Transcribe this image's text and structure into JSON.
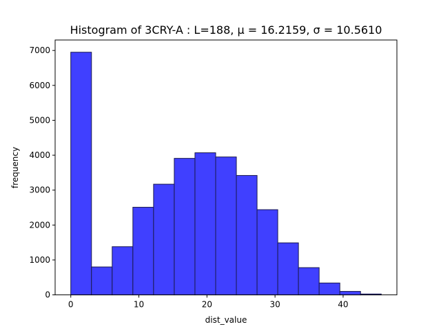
{
  "chart_data": {
    "type": "bar",
    "title": "Histogram of 3CRY-A : L=188, μ = 16.2159, σ = 10.5610",
    "xlabel": "dist_value",
    "ylabel": "frequency",
    "bin_width": 3.04,
    "bins": [
      {
        "x0": 0.0,
        "x1": 3.04,
        "value": 6950
      },
      {
        "x0": 3.04,
        "x1": 6.08,
        "value": 800
      },
      {
        "x0": 6.08,
        "x1": 9.12,
        "value": 1380
      },
      {
        "x0": 9.12,
        "x1": 12.16,
        "value": 2510
      },
      {
        "x0": 12.16,
        "x1": 15.2,
        "value": 3170
      },
      {
        "x0": 15.2,
        "x1": 18.24,
        "value": 3910
      },
      {
        "x0": 18.24,
        "x1": 21.28,
        "value": 4070
      },
      {
        "x0": 21.28,
        "x1": 24.32,
        "value": 3950
      },
      {
        "x0": 24.32,
        "x1": 27.36,
        "value": 3420
      },
      {
        "x0": 27.36,
        "x1": 30.4,
        "value": 2440
      },
      {
        "x0": 30.4,
        "x1": 33.44,
        "value": 1490
      },
      {
        "x0": 33.44,
        "x1": 36.48,
        "value": 780
      },
      {
        "x0": 36.48,
        "x1": 39.52,
        "value": 340
      },
      {
        "x0": 39.52,
        "x1": 42.56,
        "value": 100
      },
      {
        "x0": 42.56,
        "x1": 45.6,
        "value": 25
      }
    ],
    "xlim": [
      -2.3,
      47.9
    ],
    "ylim": [
      0,
      7300
    ],
    "xticks": [
      0,
      10,
      20,
      30,
      40
    ],
    "yticks": [
      0,
      1000,
      2000,
      3000,
      4000,
      5000,
      6000,
      7000
    ],
    "bar_color": "#4040ff",
    "edge_color": "#1a1a4d",
    "grid": false
  }
}
